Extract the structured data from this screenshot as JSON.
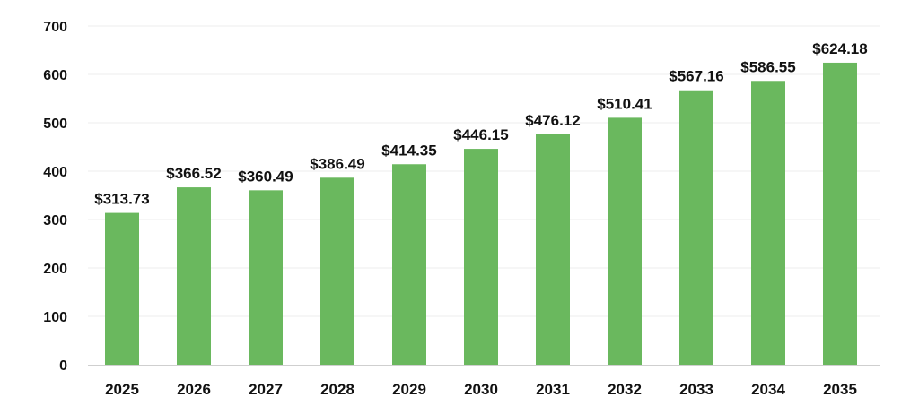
{
  "chart_data": {
    "type": "bar",
    "categories": [
      "2025",
      "2026",
      "2027",
      "2028",
      "2029",
      "2030",
      "2031",
      "2032",
      "2033",
      "2034",
      "2035"
    ],
    "values": [
      313.73,
      366.52,
      360.49,
      386.49,
      414.35,
      446.15,
      476.12,
      510.41,
      567.16,
      586.55,
      624.18
    ],
    "data_labels": [
      "$313.73",
      "$366.52",
      "$360.49",
      "$386.49",
      "$414.35",
      "$446.15",
      "$476.12",
      "$510.41",
      "$567.16",
      "$586.55",
      "$624.18"
    ],
    "y_ticks": [
      0,
      100,
      200,
      300,
      400,
      500,
      600,
      700
    ],
    "ylim": [
      0,
      700
    ],
    "title": "",
    "xlabel": "",
    "ylabel": "",
    "grid": true,
    "legend": "none",
    "bar_color": "#6ab85e"
  }
}
